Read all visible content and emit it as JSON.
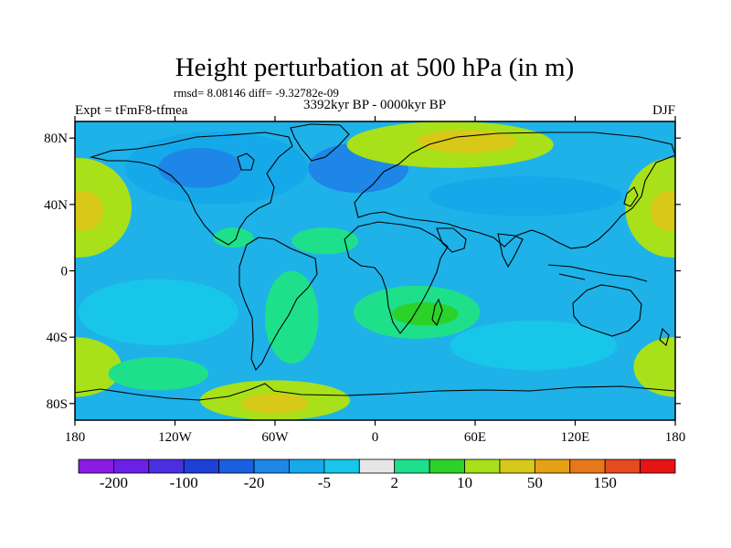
{
  "chart_data": {
    "type": "heatmap",
    "title": "Height perturbation at 500 hPa (in m)",
    "stats_line": "rmsd= 8.08146 diff= -9.32782e-09",
    "experiment_label": "Expt = tFmF8-tfmea",
    "period_label": "3392kyr BP - 0000kyr BP",
    "season_label": "DJF",
    "projection": "cylindrical-equidistant",
    "x_range": [
      -180,
      180
    ],
    "y_range": [
      -90,
      90
    ],
    "x_ticks": [
      {
        "value": -180,
        "label": "180"
      },
      {
        "value": -120,
        "label": "120W"
      },
      {
        "value": -60,
        "label": "60W"
      },
      {
        "value": 0,
        "label": "0"
      },
      {
        "value": 60,
        "label": "60E"
      },
      {
        "value": 120,
        "label": "120E"
      },
      {
        "value": 180,
        "label": "180"
      }
    ],
    "y_ticks": [
      {
        "value": 80,
        "label": "80N"
      },
      {
        "value": 40,
        "label": "40N"
      },
      {
        "value": 0,
        "label": "0"
      },
      {
        "value": -40,
        "label": "40S"
      },
      {
        "value": -80,
        "label": "80S"
      }
    ],
    "colorbar": {
      "colors": [
        "#8a1be0",
        "#6a20e6",
        "#4a2fe0",
        "#1f40d8",
        "#1a5fe0",
        "#1e86e6",
        "#16a9ea",
        "#18c6ea",
        "#e6e6e6",
        "#1fe08a",
        "#2ad22a",
        "#a8e01a",
        "#d8c818",
        "#e6a014",
        "#e6781a",
        "#e64a1e",
        "#e61414"
      ],
      "labels": [
        {
          "after_box": 1,
          "text": "-200"
        },
        {
          "after_box": 3,
          "text": "-100"
        },
        {
          "after_box": 5,
          "text": "-20"
        },
        {
          "after_box": 7,
          "text": "-5"
        },
        {
          "after_box": 9,
          "text": "2"
        },
        {
          "after_box": 11,
          "text": "10"
        },
        {
          "after_box": 13,
          "text": "50"
        },
        {
          "after_box": 15,
          "text": "150"
        }
      ]
    },
    "anomaly_features": [
      {
        "name": "n-pacific-high",
        "lon": -178,
        "lat": 38,
        "rx": 32,
        "ry": 30,
        "level": 11
      },
      {
        "name": "n-pacific-high-core",
        "lon": -175,
        "lat": 36,
        "rx": 12,
        "ry": 12,
        "level": 12
      },
      {
        "name": "dateline-high",
        "lon": 178,
        "lat": 38,
        "rx": 28,
        "ry": 30,
        "level": 11
      },
      {
        "name": "dateline-high-core",
        "lon": 176,
        "lat": 36,
        "rx": 11,
        "ry": 12,
        "level": 12
      },
      {
        "name": "n-america-low",
        "lon": -95,
        "lat": 62,
        "rx": 55,
        "ry": 22,
        "level": 6
      },
      {
        "name": "n-america-low-core",
        "lon": -105,
        "lat": 62,
        "rx": 25,
        "ry": 12,
        "level": 5
      },
      {
        "name": "n-atlantic-low",
        "lon": -10,
        "lat": 62,
        "rx": 30,
        "ry": 15,
        "level": 5
      },
      {
        "name": "siberia-high",
        "lon": 45,
        "lat": 76,
        "rx": 62,
        "ry": 14,
        "level": 11
      },
      {
        "name": "siberia-high-core",
        "lon": 55,
        "lat": 78,
        "rx": 30,
        "ry": 7,
        "level": 12
      },
      {
        "name": "asia-low",
        "lon": 90,
        "lat": 45,
        "rx": 58,
        "ry": 12,
        "level": 6
      },
      {
        "name": "atlantic-subtropic-plus",
        "lon": -30,
        "lat": 18,
        "rx": 20,
        "ry": 8,
        "level": 9
      },
      {
        "name": "c-america-plus",
        "lon": -85,
        "lat": 20,
        "rx": 12,
        "ry": 6,
        "level": 9
      },
      {
        "name": "s-pacific-low",
        "lon": -130,
        "lat": -25,
        "rx": 48,
        "ry": 20,
        "level": 7
      },
      {
        "name": "s-america-high",
        "lon": -50,
        "lat": -28,
        "rx": 16,
        "ry": 28,
        "level": 9
      },
      {
        "name": "s-atlantic-high",
        "lon": 25,
        "lat": -25,
        "rx": 38,
        "ry": 16,
        "level": 9
      },
      {
        "name": "s-atlantic-high-core",
        "lon": 30,
        "lat": -26,
        "rx": 20,
        "ry": 7,
        "level": 10
      },
      {
        "name": "s-indian-low",
        "lon": 95,
        "lat": -45,
        "rx": 50,
        "ry": 15,
        "level": 7
      },
      {
        "name": "southern-ocean-high-west",
        "lon": -180,
        "lat": -58,
        "rx": 28,
        "ry": 18,
        "level": 11
      },
      {
        "name": "southern-ocean-high-east",
        "lon": 180,
        "lat": -58,
        "rx": 25,
        "ry": 18,
        "level": 11
      },
      {
        "name": "antarctic-high",
        "lon": -60,
        "lat": -78,
        "rx": 45,
        "ry": 12,
        "level": 11
      },
      {
        "name": "antarctic-high-core",
        "lon": -60,
        "lat": -80,
        "rx": 20,
        "ry": 6,
        "level": 12
      },
      {
        "name": "s-pacific-high-band",
        "lon": -130,
        "lat": -62,
        "rx": 30,
        "ry": 10,
        "level": 9
      }
    ]
  }
}
